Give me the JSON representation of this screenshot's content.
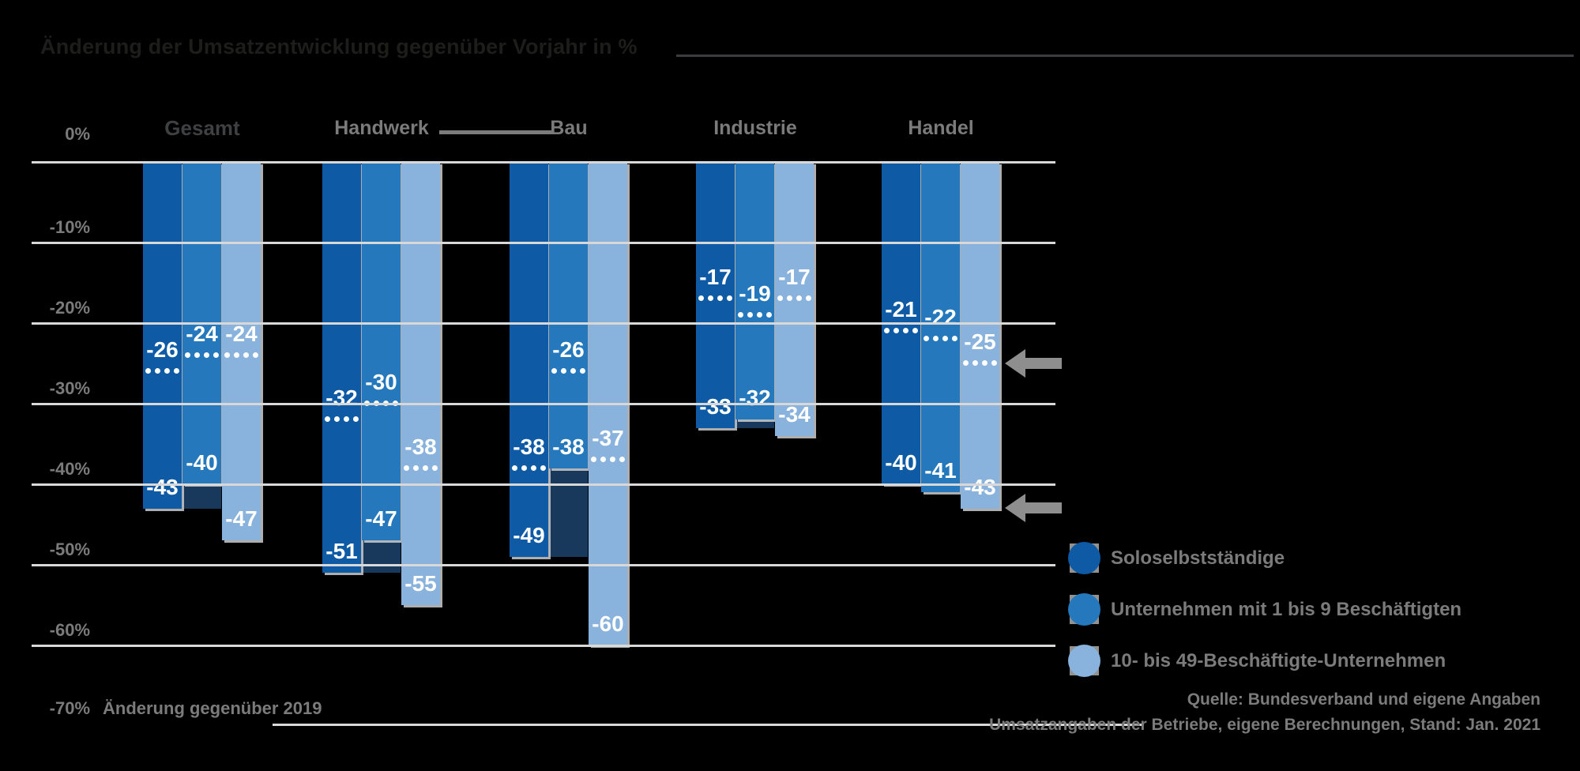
{
  "title": "Änderung der Umsatzentwicklung gegenüber Vorjahr in %",
  "y_axis": {
    "top_label": "0%",
    "tick_labels": [
      "-10%",
      "-20%",
      "-30%",
      "-40%",
      "-50%",
      "-60%"
    ],
    "bottom_label": "-70%"
  },
  "chart_data": {
    "type": "bar",
    "title": "Änderung der Umsatzentwicklung gegenüber Vorjahr in %",
    "categories": [
      "Gesamt",
      "Handwerk",
      "Bau",
      "Industrie",
      "Handel"
    ],
    "ylabel": "%",
    "ylim": [
      -70,
      0
    ],
    "grid": "horizontal",
    "legend_position": "bottom-right",
    "series": [
      {
        "name": "Soloselbstständige",
        "color": "#0e5aa5",
        "solid_values": [
          -43,
          -51,
          -49,
          -33,
          -40
        ],
        "dotted_values": [
          -26,
          -32,
          -38,
          -17,
          -21
        ]
      },
      {
        "name": "Unternehmen mit 1 bis 9 Beschäftigten",
        "color": "#2478bb",
        "solid_values": [
          -40,
          -47,
          -38,
          -32,
          -41
        ],
        "dotted_values": [
          -24,
          -30,
          -26,
          -19,
          -22
        ]
      },
      {
        "name": "10- bis 49-Beschäftigte-Unternehmen",
        "color": "#89b2dc",
        "solid_values": [
          -47,
          -55,
          -60,
          -34,
          -43
        ],
        "dotted_values": [
          -24,
          -38,
          -37,
          -17,
          -25
        ]
      }
    ],
    "annotations": {
      "dotted_line_meaning": "Änderung gegenüber 2019",
      "arrow_levels": [
        -25,
        -43
      ]
    }
  },
  "legend": [
    {
      "label": "Soloselbstständige",
      "color": "#0e5aa5"
    },
    {
      "label": "Unternehmen mit 1 bis 9 Beschäftigten",
      "color": "#2478bb"
    },
    {
      "label": "10- bis 49-Beschäftigte-Unternehmen",
      "color": "#89b2dc"
    }
  ],
  "footnote": "Änderung gegenüber 2019",
  "source": {
    "line1": "Quelle: Bundesverband und eigene Angaben",
    "line2": "Umsatzangaben der Betriebe, eigene Berechnungen, Stand: Jan. 2021"
  },
  "colors": {
    "bar_dark": "#0e5aa5",
    "bar_medium": "#2478bb",
    "bar_light": "#89b2dc",
    "overlap_shadow": "#18395c",
    "gridline": "#d8d8d8",
    "text_gray": "#7b7b7b",
    "title_dark": "#1d1d1b",
    "value_label": "#ffffff",
    "arrow_gray": "#8e8e8e"
  }
}
